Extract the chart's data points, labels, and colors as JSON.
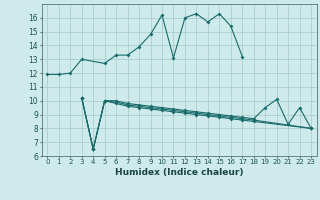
{
  "xlabel": "Humidex (Indice chaleur)",
  "background_color": "#ceeaea",
  "grid_color": "#aacfcf",
  "line_color": "#1a6b6b",
  "xlim": [
    -0.5,
    23.5
  ],
  "ylim": [
    6,
    17
  ],
  "yticks": [
    6,
    7,
    8,
    9,
    10,
    11,
    12,
    13,
    14,
    15,
    16
  ],
  "xticks": [
    0,
    1,
    2,
    3,
    4,
    5,
    6,
    7,
    8,
    9,
    10,
    11,
    12,
    13,
    14,
    15,
    16,
    17,
    18,
    19,
    20,
    21,
    22,
    23
  ],
  "line1_x": [
    0,
    1,
    2,
    3,
    5,
    6,
    7,
    8,
    9,
    10,
    11,
    12,
    13,
    14,
    15,
    16,
    17
  ],
  "line1_y": [
    11.9,
    11.9,
    12.0,
    13.0,
    12.7,
    13.3,
    13.3,
    13.9,
    14.8,
    16.2,
    13.1,
    16.0,
    16.3,
    15.7,
    16.3,
    15.4,
    13.2
  ],
  "line2_x": [
    3,
    4,
    5,
    6,
    7,
    8,
    9,
    10,
    11,
    12,
    13,
    14,
    15,
    16,
    17,
    18,
    19,
    20,
    21,
    22,
    23
  ],
  "line2_y": [
    10.2,
    6.5,
    10.0,
    10.0,
    9.8,
    9.7,
    9.6,
    9.5,
    9.4,
    9.3,
    9.2,
    9.1,
    9.0,
    8.9,
    8.8,
    8.7,
    9.5,
    10.1,
    8.3,
    9.5,
    8.0
  ],
  "line3_x": [
    3,
    4,
    5,
    6,
    7,
    8,
    9,
    10,
    11,
    12,
    13,
    14,
    15,
    16,
    17,
    18,
    23
  ],
  "line3_y": [
    10.2,
    6.5,
    10.0,
    9.9,
    9.7,
    9.6,
    9.5,
    9.4,
    9.3,
    9.2,
    9.1,
    9.0,
    8.9,
    8.8,
    8.7,
    8.6,
    8.0
  ],
  "line4_x": [
    3,
    4,
    5,
    6,
    7,
    8,
    9,
    10,
    11,
    12,
    13,
    14,
    15,
    16,
    17,
    18,
    23
  ],
  "line4_y": [
    10.2,
    6.5,
    10.0,
    9.8,
    9.6,
    9.5,
    9.4,
    9.3,
    9.2,
    9.1,
    9.0,
    8.9,
    8.8,
    8.7,
    8.6,
    8.5,
    8.0
  ]
}
